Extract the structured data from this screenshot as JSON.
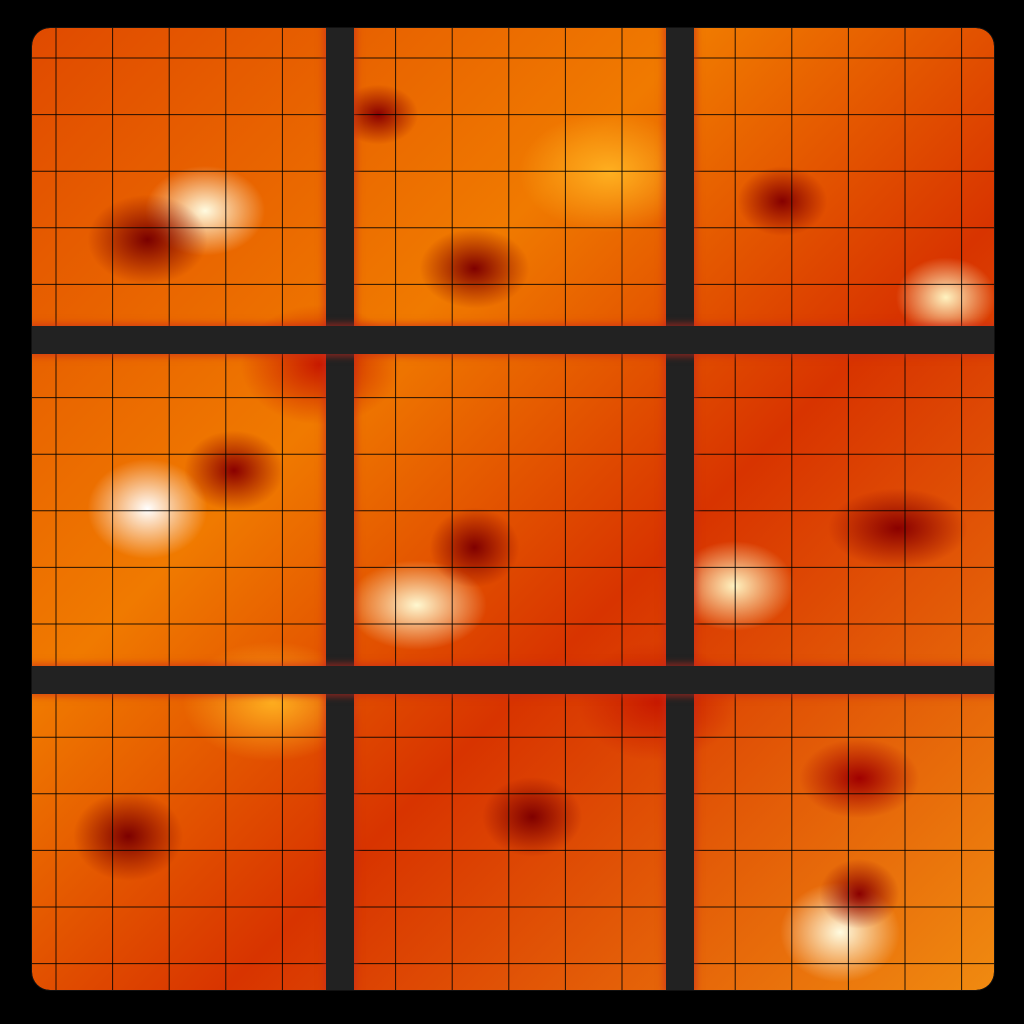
{
  "game": {
    "title": "",
    "board": {
      "style": "lava",
      "colors": {
        "background": "#000000",
        "lava_hot": "#fff8d0",
        "lava_mid": "#f07a00",
        "lava_dark": "#7a0000",
        "block_divider": "#222222",
        "cell_line": "#000000"
      },
      "rows": 17,
      "columns": 17,
      "block_rows": 3,
      "block_columns": 3
    }
  }
}
